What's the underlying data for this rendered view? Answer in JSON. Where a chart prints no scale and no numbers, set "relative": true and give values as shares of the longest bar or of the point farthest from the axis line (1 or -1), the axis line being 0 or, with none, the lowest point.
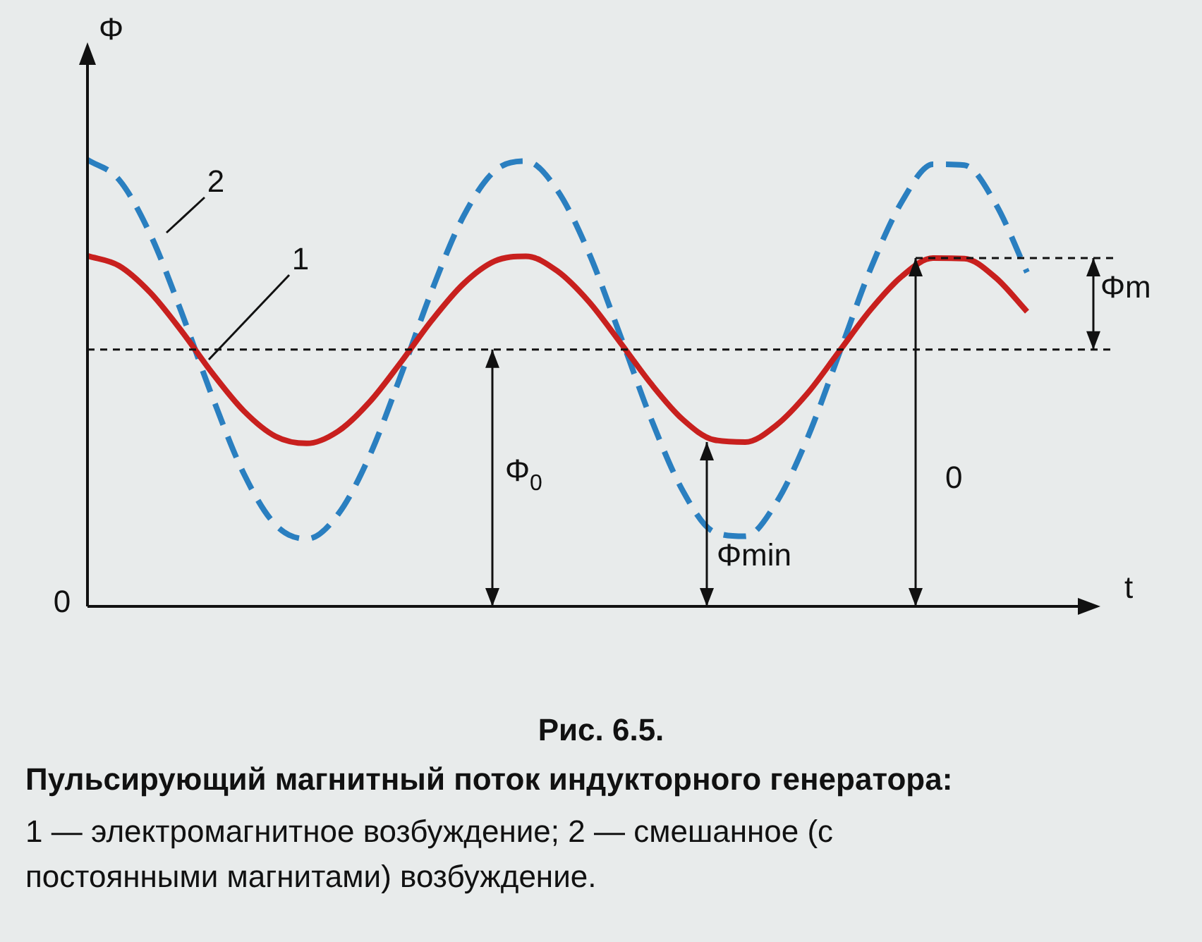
{
  "chart_data": {
    "type": "line",
    "relative": true,
    "ylabel": "Φ",
    "xlabel": "t",
    "categories": [
      null,
      null,
      null,
      null,
      null,
      null,
      null,
      null,
      null,
      null,
      null,
      null,
      null,
      null,
      null,
      null,
      null,
      null,
      null,
      null,
      null,
      null,
      null,
      null,
      null,
      null,
      null,
      null,
      null,
      null,
      null
    ],
    "series": [
      {
        "color": "#c8201e",
        "line_style": "solid",
        "values": [
          0.785,
          0.763,
          0.703,
          0.617,
          0.521,
          0.437,
          0.381,
          0.365,
          0.392,
          0.457,
          0.546,
          0.641,
          0.722,
          0.773,
          0.784,
          0.751,
          0.683,
          0.592,
          0.498,
          0.419,
          0.373,
          0.368,
          0.406,
          0.478,
          0.571,
          0.664,
          0.739,
          0.78,
          0.779,
          0.736,
          0.66
        ]
      },
      {
        "color": "#2a7fc0",
        "line_style": "dashed",
        "values": [
          1.0,
          0.956,
          0.834,
          0.659,
          0.467,
          0.296,
          0.183,
          0.151,
          0.206,
          0.336,
          0.516,
          0.708,
          0.873,
          0.975,
          0.997,
          0.932,
          0.793,
          0.609,
          0.419,
          0.26,
          0.167,
          0.157,
          0.233,
          0.379,
          0.566,
          0.755,
          0.906,
          0.99,
          0.988,
          0.901,
          0.748
        ]
      }
    ],
    "ref_lines": [
      {
        "axis": "y",
        "value": 0.575,
        "line_style": "dashed",
        "color": "#111111"
      }
    ],
    "marker": "none",
    "grid": false,
    "legend": false,
    "annotations": [
      "1",
      "2",
      "0",
      "Φm",
      "Φ$_{0}$",
      "Φmin",
      "0",
      "Рис. 6.5.",
      "Пульсирующий магнитный поток индукторного генератора:",
      "1 — электромагнитное возбуждение; 2 — смешанное (с постоянными магнитами) возбуждение."
    ]
  }
}
